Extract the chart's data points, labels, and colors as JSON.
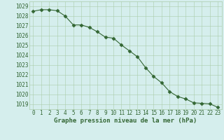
{
  "x": [
    0,
    1,
    2,
    3,
    4,
    5,
    6,
    7,
    8,
    9,
    10,
    11,
    12,
    13,
    14,
    15,
    16,
    17,
    18,
    19,
    20,
    21,
    22,
    23
  ],
  "y": [
    1028.5,
    1028.65,
    1028.65,
    1028.55,
    1028.0,
    1027.1,
    1027.1,
    1026.85,
    1026.4,
    1025.85,
    1025.75,
    1025.05,
    1024.45,
    1023.85,
    1022.75,
    1021.85,
    1021.2,
    1020.3,
    1019.8,
    1019.55,
    1019.15,
    1019.1,
    1019.05,
    1018.7
  ],
  "line_color": "#336633",
  "marker": "D",
  "marker_size": 2.5,
  "bg_color": "#d5eeed",
  "plot_bg_color": "#d5eeed",
  "grid_color": "#aaccaa",
  "xlabel": "Graphe pression niveau de la mer (hPa)",
  "xlabel_color": "#336633",
  "tick_color": "#336633",
  "ylim": [
    1018.5,
    1029.5
  ],
  "yticks": [
    1019,
    1020,
    1021,
    1022,
    1023,
    1024,
    1025,
    1026,
    1027,
    1028,
    1029
  ],
  "xlim": [
    -0.5,
    23.5
  ],
  "xticks": [
    0,
    1,
    2,
    3,
    4,
    5,
    6,
    7,
    8,
    9,
    10,
    11,
    12,
    13,
    14,
    15,
    16,
    17,
    18,
    19,
    20,
    21,
    22,
    23
  ],
  "tick_fontsize": 5.5,
  "xlabel_fontsize": 6.5,
  "linewidth": 0.8
}
